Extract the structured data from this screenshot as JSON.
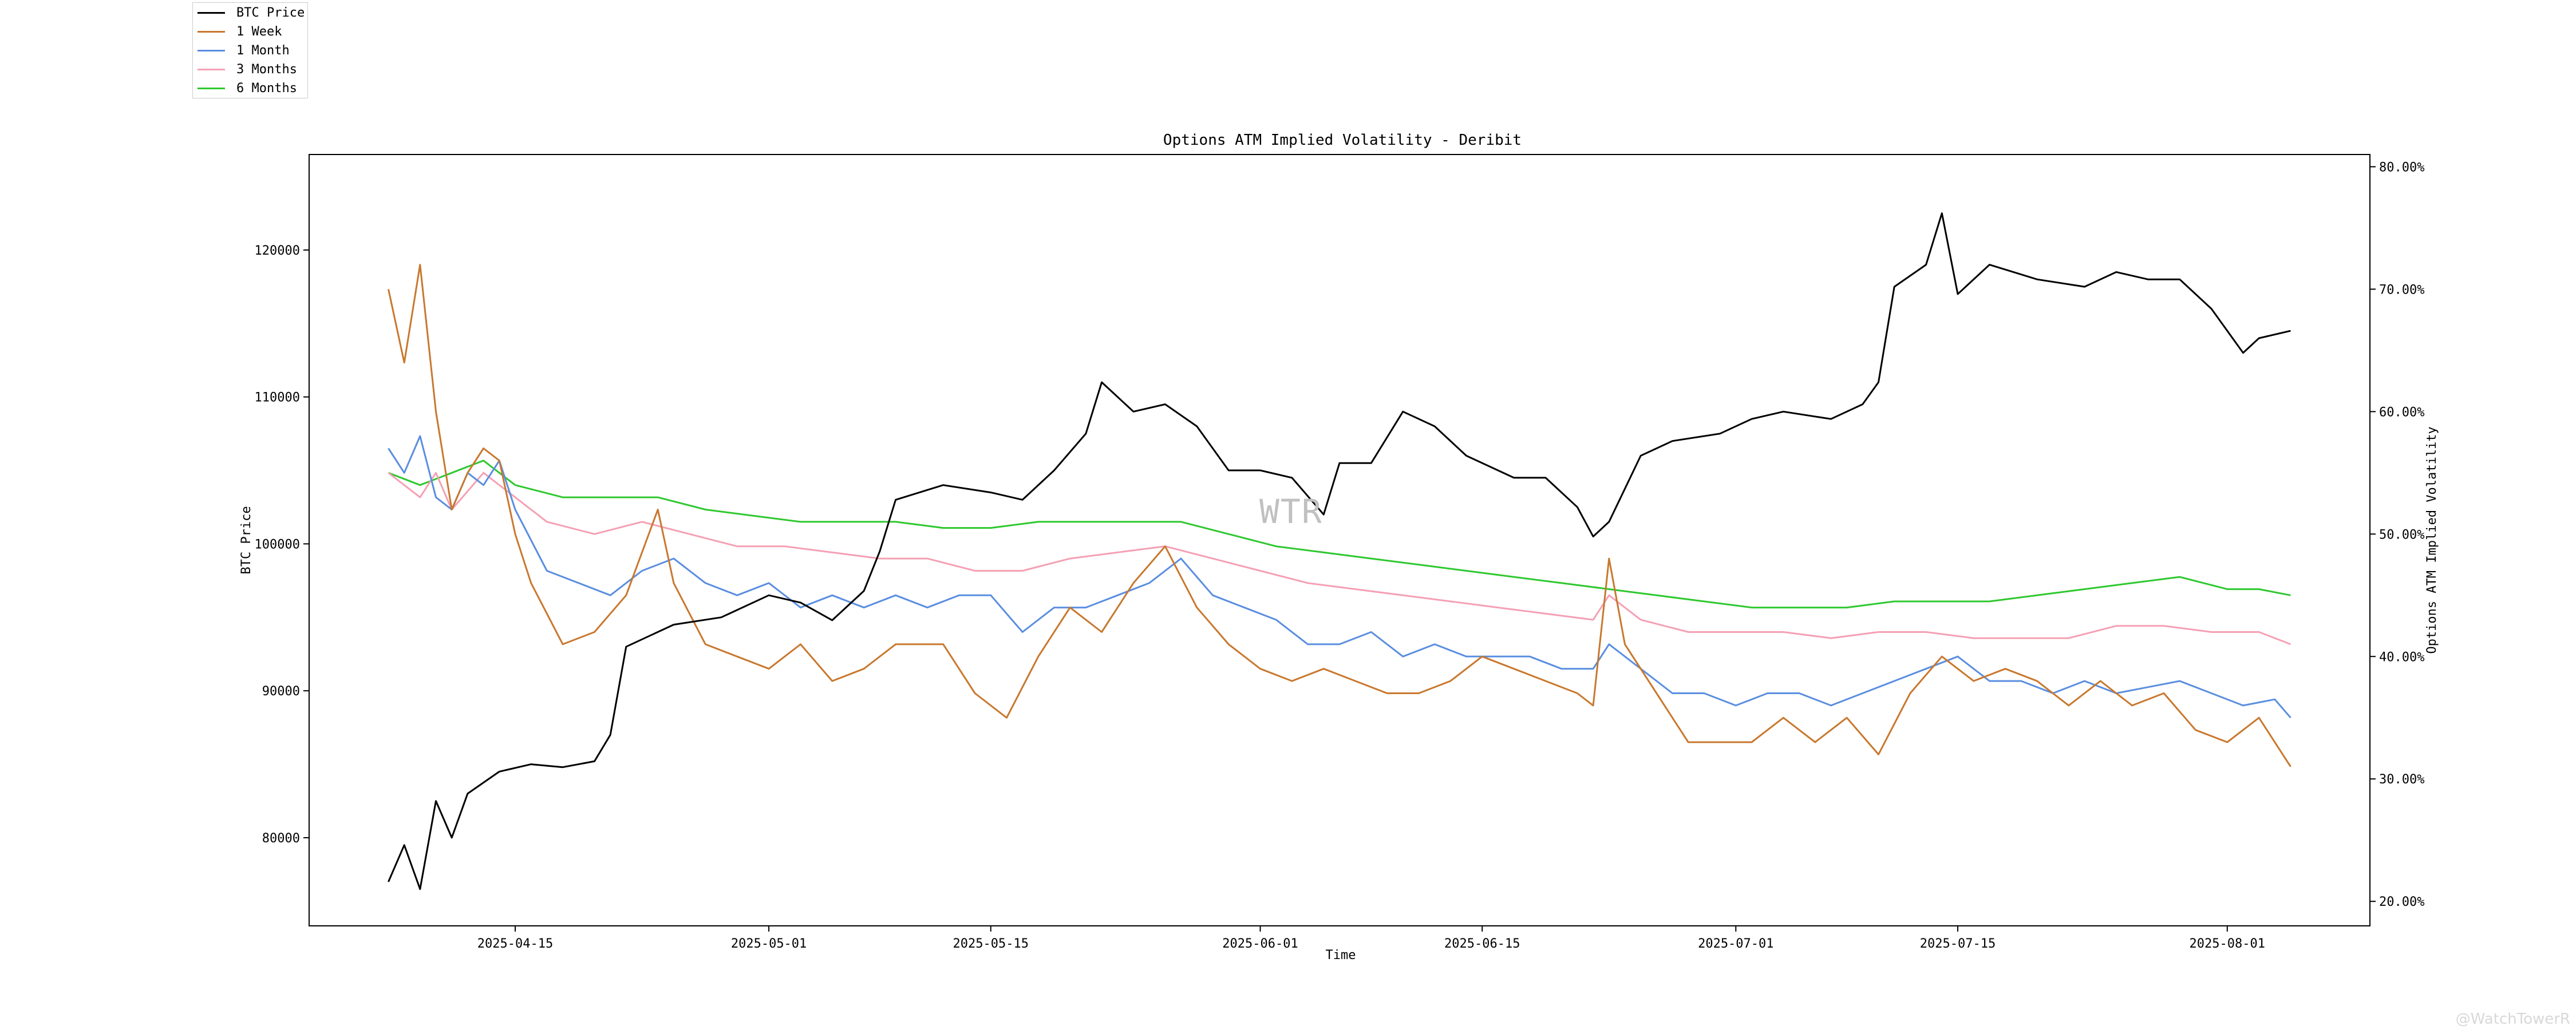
{
  "chart_data": {
    "type": "line",
    "title": "Options ATM Implied Volatility - Deribit",
    "xlabel": "Time",
    "ylabel_left": "BTC Price",
    "ylabel_right": "Options ATM Implied Volatility",
    "x_ticks": [
      "2025-04-15",
      "2025-05-01",
      "2025-05-15",
      "2025-06-01",
      "2025-06-15",
      "2025-07-01",
      "2025-07-15",
      "2025-08-01"
    ],
    "y_left_ticks": [
      "80000",
      "90000",
      "100000",
      "110000",
      "120000"
    ],
    "y_right_ticks": [
      "20.00%",
      "30.00%",
      "40.00%",
      "50.00%",
      "60.00%",
      "70.00%",
      "80.00%"
    ],
    "xlim": [
      "2025-04-02",
      "2025-08-10"
    ],
    "ylim_left": [
      74000,
      126500
    ],
    "ylim_right": [
      18.0,
      81.0
    ],
    "legend_position": "top-left",
    "watermark": "WTR",
    "credit": "@WatchTowerR",
    "grid": false,
    "series": [
      {
        "name": "BTC Price",
        "axis": "left",
        "color": "#000000",
        "x": [
          "2025-04-07",
          "2025-04-08",
          "2025-04-09",
          "2025-04-10",
          "2025-04-11",
          "2025-04-12",
          "2025-04-14",
          "2025-04-16",
          "2025-04-18",
          "2025-04-20",
          "2025-04-21",
          "2025-04-22",
          "2025-04-23",
          "2025-04-25",
          "2025-04-28",
          "2025-05-01",
          "2025-05-03",
          "2025-05-05",
          "2025-05-07",
          "2025-05-08",
          "2025-05-09",
          "2025-05-12",
          "2025-05-15",
          "2025-05-17",
          "2025-05-19",
          "2025-05-21",
          "2025-05-22",
          "2025-05-24",
          "2025-05-26",
          "2025-05-28",
          "2025-05-30",
          "2025-06-01",
          "2025-06-03",
          "2025-06-05",
          "2025-06-06",
          "2025-06-08",
          "2025-06-10",
          "2025-06-12",
          "2025-06-14",
          "2025-06-17",
          "2025-06-19",
          "2025-06-21",
          "2025-06-22",
          "2025-06-23",
          "2025-06-25",
          "2025-06-27",
          "2025-06-30",
          "2025-07-02",
          "2025-07-04",
          "2025-07-07",
          "2025-07-09",
          "2025-07-10",
          "2025-07-11",
          "2025-07-13",
          "2025-07-14",
          "2025-07-15",
          "2025-07-17",
          "2025-07-20",
          "2025-07-23",
          "2025-07-25",
          "2025-07-27",
          "2025-07-29",
          "2025-07-31",
          "2025-08-01",
          "2025-08-02",
          "2025-08-03",
          "2025-08-05"
        ],
        "values": [
          77000,
          79500,
          76500,
          82500,
          80000,
          83000,
          84500,
          85000,
          84800,
          85200,
          87000,
          93000,
          93500,
          94500,
          95000,
          96500,
          96000,
          94800,
          96800,
          99500,
          103000,
          104000,
          103500,
          103000,
          105000,
          107500,
          111000,
          109000,
          109500,
          108000,
          105000,
          105000,
          104500,
          102000,
          105500,
          105500,
          109000,
          108000,
          106000,
          104500,
          104500,
          102500,
          100500,
          101500,
          106000,
          107000,
          107500,
          108500,
          109000,
          108500,
          109500,
          111000,
          117500,
          119000,
          122500,
          117000,
          119000,
          118000,
          117500,
          118500,
          118000,
          118000,
          116000,
          114500,
          113000,
          114000,
          114500
        ]
      },
      {
        "name": "1 Week",
        "axis": "right",
        "color": "#c8782e",
        "x": [
          "2025-04-07",
          "2025-04-08",
          "2025-04-09",
          "2025-04-10",
          "2025-04-11",
          "2025-04-12",
          "2025-04-13",
          "2025-04-14",
          "2025-04-15",
          "2025-04-16",
          "2025-04-18",
          "2025-04-20",
          "2025-04-22",
          "2025-04-24",
          "2025-04-25",
          "2025-04-27",
          "2025-04-29",
          "2025-05-01",
          "2025-05-03",
          "2025-05-05",
          "2025-05-07",
          "2025-05-09",
          "2025-05-12",
          "2025-05-14",
          "2025-05-16",
          "2025-05-18",
          "2025-05-20",
          "2025-05-22",
          "2025-05-24",
          "2025-05-26",
          "2025-05-28",
          "2025-05-30",
          "2025-06-01",
          "2025-06-03",
          "2025-06-05",
          "2025-06-07",
          "2025-06-09",
          "2025-06-11",
          "2025-06-13",
          "2025-06-15",
          "2025-06-17",
          "2025-06-19",
          "2025-06-21",
          "2025-06-22",
          "2025-06-23",
          "2025-06-24",
          "2025-06-26",
          "2025-06-28",
          "2025-06-30",
          "2025-07-02",
          "2025-07-04",
          "2025-07-06",
          "2025-07-08",
          "2025-07-10",
          "2025-07-12",
          "2025-07-14",
          "2025-07-16",
          "2025-07-18",
          "2025-07-20",
          "2025-07-22",
          "2025-07-24",
          "2025-07-26",
          "2025-07-28",
          "2025-07-30",
          "2025-08-01",
          "2025-08-03",
          "2025-08-05"
        ],
        "values": [
          70.0,
          64.0,
          72.0,
          60.0,
          52.0,
          55.0,
          57.0,
          56.0,
          50.0,
          46.0,
          41.0,
          42.0,
          45.0,
          52.0,
          46.0,
          41.0,
          40.0,
          39.0,
          41.0,
          38.0,
          39.0,
          41.0,
          41.0,
          37.0,
          35.0,
          40.0,
          44.0,
          42.0,
          46.0,
          49.0,
          44.0,
          41.0,
          39.0,
          38.0,
          39.0,
          38.0,
          37.0,
          37.0,
          38.0,
          40.0,
          39.0,
          38.0,
          37.0,
          36.0,
          48.0,
          41.0,
          37.0,
          33.0,
          33.0,
          33.0,
          35.0,
          33.0,
          35.0,
          32.0,
          37.0,
          40.0,
          38.0,
          39.0,
          38.0,
          36.0,
          38.0,
          36.0,
          37.0,
          34.0,
          33.0,
          35.0,
          31.0
        ]
      },
      {
        "name": "1 Month",
        "axis": "right",
        "color": "#5a8ee0",
        "x": [
          "2025-04-07",
          "2025-04-08",
          "2025-04-09",
          "2025-04-10",
          "2025-04-11",
          "2025-04-12",
          "2025-04-13",
          "2025-04-14",
          "2025-04-15",
          "2025-04-17",
          "2025-04-19",
          "2025-04-21",
          "2025-04-23",
          "2025-04-25",
          "2025-04-27",
          "2025-04-29",
          "2025-05-01",
          "2025-05-03",
          "2025-05-05",
          "2025-05-07",
          "2025-05-09",
          "2025-05-11",
          "2025-05-13",
          "2025-05-15",
          "2025-05-17",
          "2025-05-19",
          "2025-05-21",
          "2025-05-23",
          "2025-05-25",
          "2025-05-27",
          "2025-05-29",
          "2025-05-31",
          "2025-06-02",
          "2025-06-04",
          "2025-06-06",
          "2025-06-08",
          "2025-06-10",
          "2025-06-12",
          "2025-06-14",
          "2025-06-16",
          "2025-06-18",
          "2025-06-20",
          "2025-06-22",
          "2025-06-23",
          "2025-06-25",
          "2025-06-27",
          "2025-06-29",
          "2025-07-01",
          "2025-07-03",
          "2025-07-05",
          "2025-07-07",
          "2025-07-09",
          "2025-07-11",
          "2025-07-13",
          "2025-07-15",
          "2025-07-17",
          "2025-07-19",
          "2025-07-21",
          "2025-07-23",
          "2025-07-25",
          "2025-07-27",
          "2025-07-29",
          "2025-07-31",
          "2025-08-02",
          "2025-08-04",
          "2025-08-05"
        ],
        "values": [
          57.0,
          55.0,
          58.0,
          53.0,
          52.0,
          55.0,
          54.0,
          56.0,
          52.0,
          47.0,
          46.0,
          45.0,
          47.0,
          48.0,
          46.0,
          45.0,
          46.0,
          44.0,
          45.0,
          44.0,
          45.0,
          44.0,
          45.0,
          45.0,
          42.0,
          44.0,
          44.0,
          45.0,
          46.0,
          48.0,
          45.0,
          44.0,
          43.0,
          41.0,
          41.0,
          42.0,
          40.0,
          41.0,
          40.0,
          40.0,
          40.0,
          39.0,
          39.0,
          41.0,
          39.0,
          37.0,
          37.0,
          36.0,
          37.0,
          37.0,
          36.0,
          37.0,
          38.0,
          39.0,
          40.0,
          38.0,
          38.0,
          37.0,
          38.0,
          37.0,
          37.5,
          38.0,
          37.0,
          36.0,
          36.5,
          35.0
        ]
      },
      {
        "name": "3 Months",
        "axis": "right",
        "color": "#f5a0b4",
        "x": [
          "2025-04-07",
          "2025-04-09",
          "2025-04-10",
          "2025-04-11",
          "2025-04-13",
          "2025-04-15",
          "2025-04-17",
          "2025-04-20",
          "2025-04-23",
          "2025-04-26",
          "2025-04-29",
          "2025-05-02",
          "2025-05-05",
          "2025-05-08",
          "2025-05-11",
          "2025-05-14",
          "2025-05-17",
          "2025-05-20",
          "2025-05-23",
          "2025-05-26",
          "2025-05-29",
          "2025-06-01",
          "2025-06-04",
          "2025-06-07",
          "2025-06-10",
          "2025-06-13",
          "2025-06-16",
          "2025-06-19",
          "2025-06-22",
          "2025-06-23",
          "2025-06-25",
          "2025-06-28",
          "2025-07-01",
          "2025-07-04",
          "2025-07-07",
          "2025-07-10",
          "2025-07-13",
          "2025-07-16",
          "2025-07-19",
          "2025-07-22",
          "2025-07-25",
          "2025-07-28",
          "2025-07-31",
          "2025-08-03",
          "2025-08-05"
        ],
        "values": [
          55.0,
          53.0,
          55.0,
          52.0,
          55.0,
          53.0,
          51.0,
          50.0,
          51.0,
          50.0,
          49.0,
          49.0,
          48.5,
          48.0,
          48.0,
          47.0,
          47.0,
          48.0,
          48.5,
          49.0,
          48.0,
          47.0,
          46.0,
          45.5,
          45.0,
          44.5,
          44.0,
          43.5,
          43.0,
          45.0,
          43.0,
          42.0,
          42.0,
          42.0,
          41.5,
          42.0,
          42.0,
          41.5,
          41.5,
          41.5,
          42.5,
          42.5,
          42.0,
          42.0,
          41.0
        ]
      },
      {
        "name": "6 Months",
        "axis": "right",
        "color": "#2ec82e",
        "x": [
          "2025-04-07",
          "2025-04-09",
          "2025-04-11",
          "2025-04-13",
          "2025-04-15",
          "2025-04-18",
          "2025-04-21",
          "2025-04-24",
          "2025-04-27",
          "2025-04-30",
          "2025-05-03",
          "2025-05-06",
          "2025-05-09",
          "2025-05-12",
          "2025-05-15",
          "2025-05-18",
          "2025-05-21",
          "2025-05-24",
          "2025-05-27",
          "2025-05-30",
          "2025-06-02",
          "2025-06-05",
          "2025-06-08",
          "2025-06-11",
          "2025-06-14",
          "2025-06-17",
          "2025-06-20",
          "2025-06-23",
          "2025-06-26",
          "2025-06-29",
          "2025-07-02",
          "2025-07-05",
          "2025-07-08",
          "2025-07-11",
          "2025-07-14",
          "2025-07-17",
          "2025-07-20",
          "2025-07-23",
          "2025-07-26",
          "2025-07-29",
          "2025-08-01",
          "2025-08-03",
          "2025-08-05"
        ],
        "values": [
          55.0,
          54.0,
          55.0,
          56.0,
          54.0,
          53.0,
          53.0,
          53.0,
          52.0,
          51.5,
          51.0,
          51.0,
          51.0,
          50.5,
          50.5,
          51.0,
          51.0,
          51.0,
          51.0,
          50.0,
          49.0,
          48.5,
          48.0,
          47.5,
          47.0,
          46.5,
          46.0,
          45.5,
          45.0,
          44.5,
          44.0,
          44.0,
          44.0,
          44.5,
          44.5,
          44.5,
          45.0,
          45.5,
          46.0,
          46.5,
          45.5,
          45.5,
          45.0
        ]
      }
    ]
  }
}
